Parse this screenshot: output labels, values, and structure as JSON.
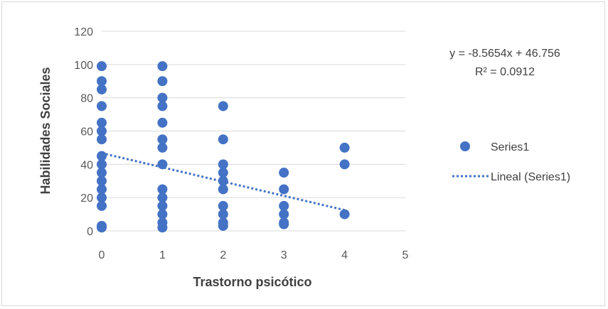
{
  "chart_data": {
    "type": "scatter",
    "xlabel": "Trastorno psicótico",
    "ylabel": "Habilidades Sociales",
    "xlim": [
      0,
      5
    ],
    "ylim": [
      0,
      120
    ],
    "xticks": [
      "0",
      "1",
      "2",
      "3",
      "4",
      "5"
    ],
    "yticks": [
      "0",
      "20",
      "40",
      "60",
      "80",
      "100",
      "120"
    ],
    "grid": "horizontal",
    "legend_position": "right",
    "colors": {
      "points": "#4472c4",
      "trendline": "#4472c4",
      "grid": "#d9d9d9"
    },
    "series": [
      {
        "name": "Series1",
        "points": [
          [
            0,
            99
          ],
          [
            0,
            90
          ],
          [
            0,
            85
          ],
          [
            0,
            75
          ],
          [
            0,
            65
          ],
          [
            0,
            60
          ],
          [
            0,
            55
          ],
          [
            0,
            45
          ],
          [
            0,
            40
          ],
          [
            0,
            35
          ],
          [
            0,
            30
          ],
          [
            0,
            25
          ],
          [
            0,
            20
          ],
          [
            0,
            15
          ],
          [
            0,
            3
          ],
          [
            0,
            2
          ],
          [
            1,
            99
          ],
          [
            1,
            90
          ],
          [
            1,
            80
          ],
          [
            1,
            75
          ],
          [
            1,
            65
          ],
          [
            1,
            55
          ],
          [
            1,
            50
          ],
          [
            1,
            40
          ],
          [
            1,
            25
          ],
          [
            1,
            20
          ],
          [
            1,
            15
          ],
          [
            1,
            10
          ],
          [
            1,
            5
          ],
          [
            1,
            2
          ],
          [
            2,
            75
          ],
          [
            2,
            55
          ],
          [
            2,
            40
          ],
          [
            2,
            35
          ],
          [
            2,
            30
          ],
          [
            2,
            25
          ],
          [
            2,
            15
          ],
          [
            2,
            10
          ],
          [
            2,
            5
          ],
          [
            2,
            3
          ],
          [
            3,
            35
          ],
          [
            3,
            25
          ],
          [
            3,
            15
          ],
          [
            3,
            10
          ],
          [
            3,
            5
          ],
          [
            3,
            4
          ],
          [
            4,
            50
          ],
          [
            4,
            40
          ],
          [
            4,
            10
          ]
        ]
      }
    ],
    "trendline": {
      "name": "Lineal (Series1)",
      "slope": -8.5654,
      "intercept": 46.756,
      "x_range": [
        0,
        4
      ],
      "equation_label": "y = -8.5654x + 46.756",
      "r2_label": "R² = 0.0912"
    }
  }
}
